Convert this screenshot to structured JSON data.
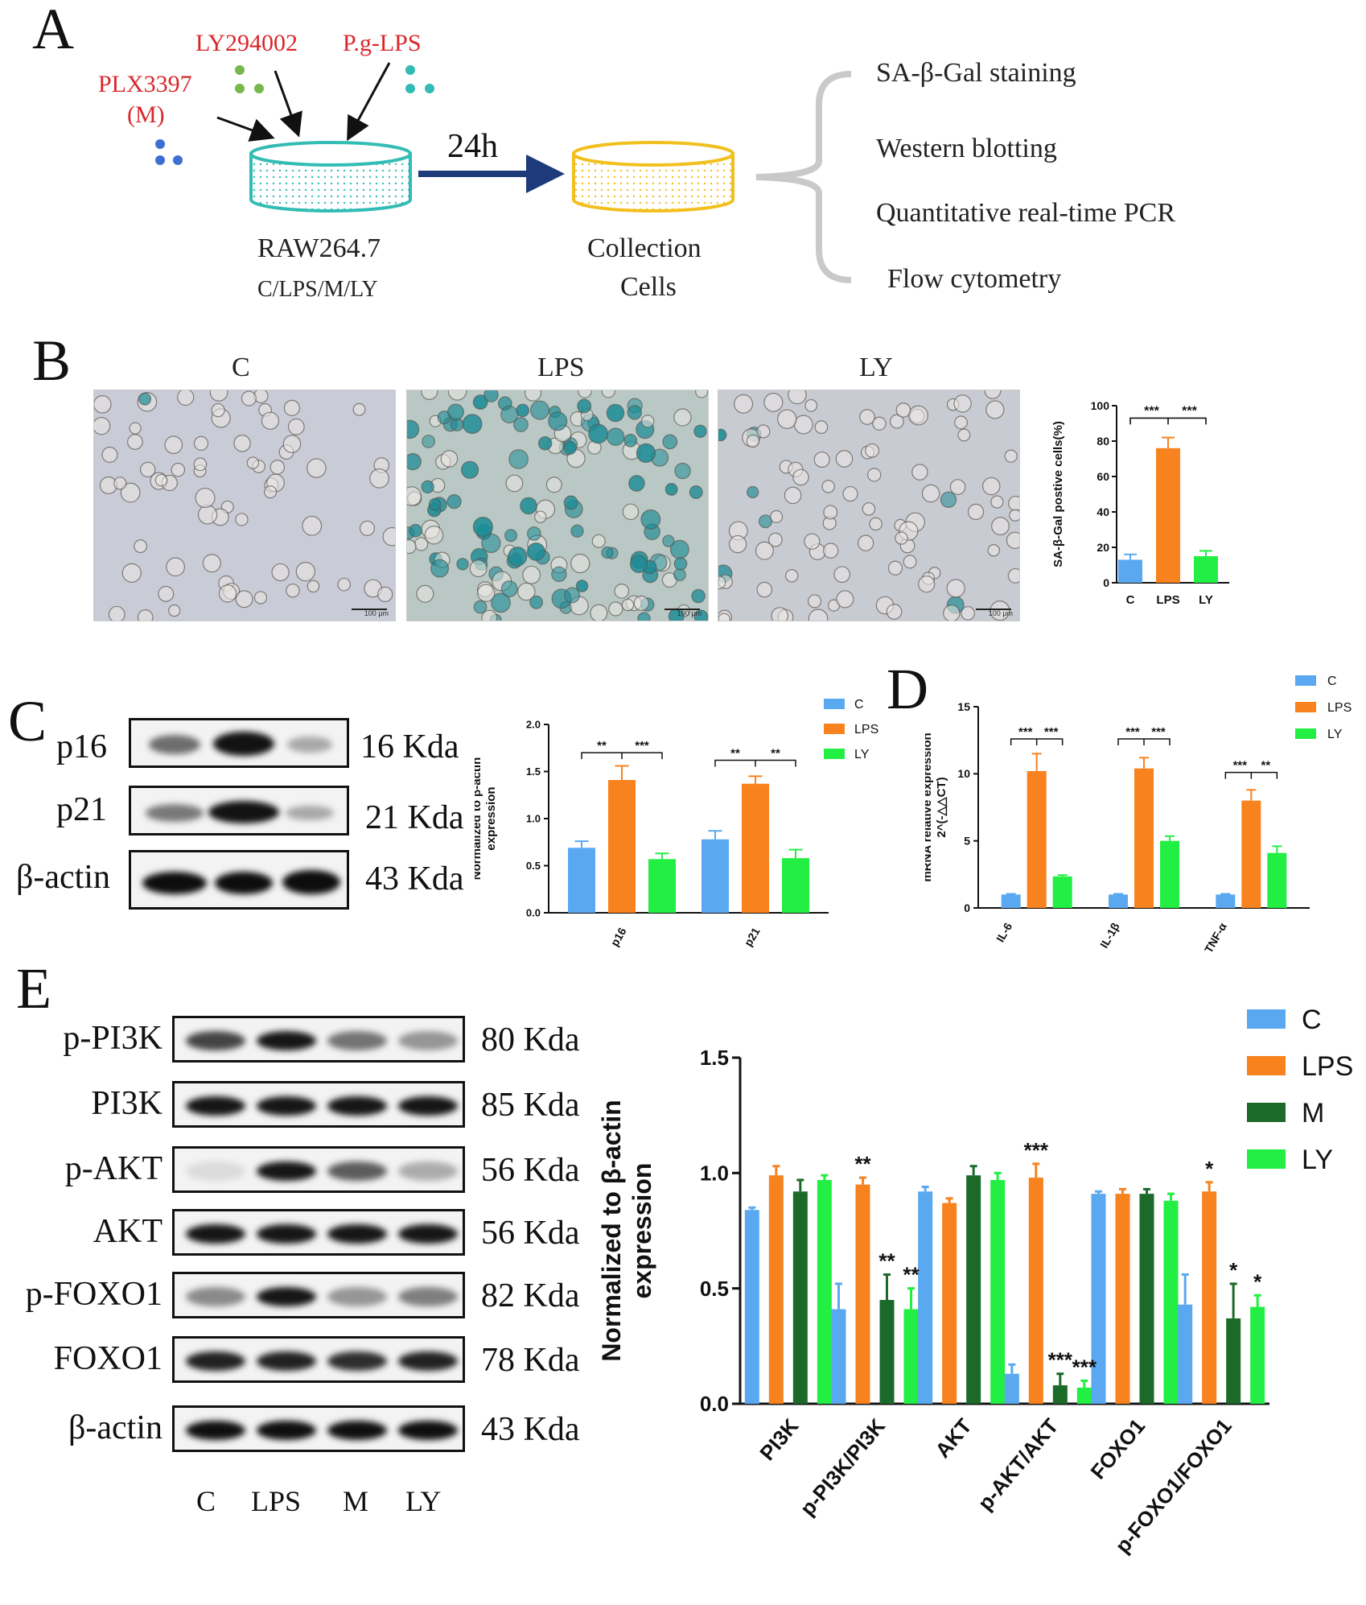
{
  "panelA": {
    "letter": "A",
    "drug1_line1": "PLX3397",
    "drug1_line2": "(M)",
    "drug2": "LY294002",
    "drug3": "P.g-LPS",
    "time": "24h",
    "cell_line": "RAW264.7",
    "groups": "C/LPS/M/LY",
    "collection_line1": "Collection",
    "collection_line2": "Cells",
    "assays": [
      "SA-β-Gal staining",
      "Western blotting",
      "Quantitative real-time PCR",
      "Flow cytometry"
    ]
  },
  "panelB": {
    "letter": "B",
    "image_labels": [
      "C",
      "LPS",
      "LY"
    ],
    "scale_bar_text": [
      "100 μm",
      "100 μm",
      "100 μm"
    ]
  },
  "panelC": {
    "letter": "C",
    "blots": [
      {
        "name": "p16",
        "kda": "16 Kda"
      },
      {
        "name": "p21",
        "kda": "21 Kda"
      },
      {
        "name": "β-actin",
        "kda": "43 Kda"
      }
    ]
  },
  "panelD": {
    "letter": "D"
  },
  "panelE": {
    "letter": "E",
    "blots": [
      {
        "name": "p-PI3K",
        "kda": "80 Kda"
      },
      {
        "name": "PI3K",
        "kda": "85 Kda"
      },
      {
        "name": "p-AKT",
        "kda": "56 Kda"
      },
      {
        "name": "AKT",
        "kda": "56 Kda"
      },
      {
        "name": "p-FOXO1",
        "kda": "82 Kda"
      },
      {
        "name": "FOXO1",
        "kda": "78 Kda"
      },
      {
        "name": "β-actin",
        "kda": "43 Kda"
      }
    ],
    "lane_labels": [
      "C",
      "LPS",
      "M",
      "LY"
    ]
  },
  "colors": {
    "C": "#5aa9f0",
    "LPS": "#f7821e",
    "M": "#1b6a2a",
    "LY": "#22ee44"
  },
  "chart_data": [
    {
      "id": "B",
      "type": "bar",
      "categories": [
        "C",
        "LPS",
        "LY"
      ],
      "values": [
        13,
        76,
        15
      ],
      "errors": [
        3,
        6,
        3
      ],
      "ylabel": "SA-β-Gal postive cells(%)",
      "ylim": [
        0,
        100
      ],
      "yticks": [
        0,
        20,
        40,
        60,
        80,
        100
      ],
      "significance": [
        {
          "from": "LPS",
          "to": "C",
          "label": "***"
        },
        {
          "from": "LPS",
          "to": "LY",
          "label": "***"
        }
      ]
    },
    {
      "id": "C",
      "type": "bar",
      "categories": [
        "p16",
        "p21"
      ],
      "series": [
        {
          "name": "C",
          "values": [
            0.69,
            0.78
          ],
          "errors": [
            0.07,
            0.09
          ]
        },
        {
          "name": "LPS",
          "values": [
            1.41,
            1.37
          ],
          "errors": [
            0.15,
            0.08
          ]
        },
        {
          "name": "LY",
          "values": [
            0.57,
            0.58
          ],
          "errors": [
            0.06,
            0.09
          ]
        }
      ],
      "ylabel": "Normalized to β-actin expression",
      "ylim": [
        0,
        2.0
      ],
      "yticks": [
        "0.0",
        "0.5",
        "1.0",
        "1.5",
        "2.0"
      ],
      "significance": [
        {
          "category": "p16",
          "labels": [
            "**",
            "***"
          ]
        },
        {
          "category": "p21",
          "labels": [
            "**",
            "**"
          ]
        }
      ],
      "legend": "top-right"
    },
    {
      "id": "D",
      "type": "bar",
      "categories": [
        "IL-6",
        "IL-1β",
        "TNF-α"
      ],
      "series": [
        {
          "name": "C",
          "values": [
            1.0,
            1.0,
            1.0
          ],
          "errors": [
            0.05,
            0.05,
            0.05
          ]
        },
        {
          "name": "LPS",
          "values": [
            10.2,
            10.4,
            8.0
          ],
          "errors": [
            1.3,
            0.8,
            0.8
          ]
        },
        {
          "name": "LY",
          "values": [
            2.35,
            5.0,
            4.1
          ],
          "errors": [
            0.1,
            0.35,
            0.5
          ]
        }
      ],
      "ylabel": "mRNA relative expression 2^(-△△CT)",
      "ylim": [
        0,
        15
      ],
      "yticks": [
        0,
        5,
        10,
        15
      ],
      "significance": [
        {
          "category": "IL-6",
          "labels": [
            "***",
            "***"
          ]
        },
        {
          "category": "IL-1β",
          "labels": [
            "***",
            "***"
          ]
        },
        {
          "category": "TNF-α",
          "labels": [
            "***",
            "**"
          ]
        }
      ],
      "legend": "top-right"
    },
    {
      "id": "E",
      "type": "bar",
      "categories": [
        "PI3K",
        "p-PI3K/PI3K",
        "AKT",
        "p-AKT/AKT",
        "FOXO1",
        "p-FOXO1/FOXO1"
      ],
      "series": [
        {
          "name": "C",
          "values": [
            0.84,
            0.41,
            0.92,
            0.13,
            0.91,
            0.43
          ],
          "errors": [
            0.01,
            0.11,
            0.02,
            0.04,
            0.01,
            0.13
          ]
        },
        {
          "name": "LPS",
          "values": [
            0.99,
            0.95,
            0.87,
            0.98,
            0.91,
            0.92
          ],
          "errors": [
            0.04,
            0.03,
            0.02,
            0.06,
            0.02,
            0.04
          ]
        },
        {
          "name": "M",
          "values": [
            0.92,
            0.45,
            0.99,
            0.08,
            0.91,
            0.37
          ],
          "errors": [
            0.05,
            0.11,
            0.04,
            0.05,
            0.02,
            0.15
          ]
        },
        {
          "name": "LY",
          "values": [
            0.97,
            0.41,
            0.97,
            0.07,
            0.88,
            0.42
          ],
          "errors": [
            0.02,
            0.09,
            0.03,
            0.03,
            0.03,
            0.05
          ]
        }
      ],
      "ylabel": "Normalized to β-actin expression",
      "ylim": [
        0,
        1.5
      ],
      "yticks": [
        "0.0",
        "0.5",
        "1.0",
        "1.5"
      ],
      "significance": [
        {
          "category": "p-PI3K/PI3K",
          "series": "LPS",
          "label": "**"
        },
        {
          "category": "p-PI3K/PI3K",
          "series": "M",
          "label": "**"
        },
        {
          "category": "p-PI3K/PI3K",
          "series": "LY",
          "label": "**"
        },
        {
          "category": "p-AKT/AKT",
          "series": "LPS",
          "label": "***"
        },
        {
          "category": "p-AKT/AKT",
          "series": "M",
          "label": "***"
        },
        {
          "category": "p-AKT/AKT",
          "series": "LY",
          "label": "***"
        },
        {
          "category": "p-FOXO1/FOXO1",
          "series": "LPS",
          "label": "*"
        },
        {
          "category": "p-FOXO1/FOXO1",
          "series": "M",
          "label": "*"
        },
        {
          "category": "p-FOXO1/FOXO1",
          "series": "LY",
          "label": "*"
        }
      ],
      "legend": "top-right"
    }
  ]
}
